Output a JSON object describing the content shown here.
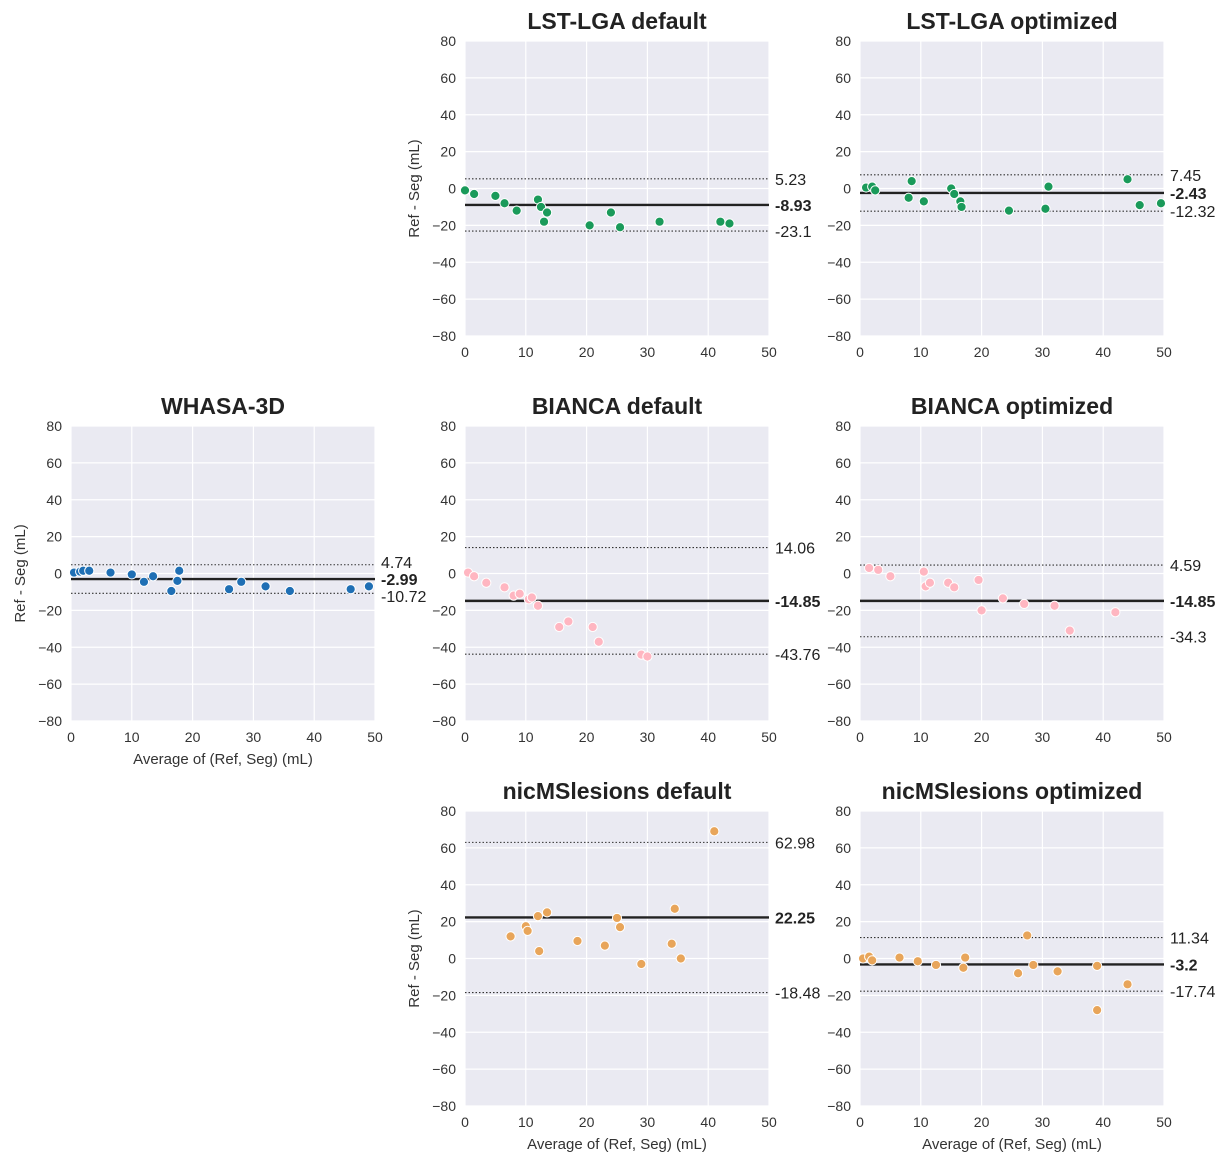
{
  "chart_data": [
    {
      "type": "scatter",
      "id": "lst-lga-default",
      "title": "LST-LGA default",
      "xlabel": "",
      "ylabel": "Ref - Seg (mL)",
      "xlim": [
        0,
        50
      ],
      "ylim": [
        -80,
        80
      ],
      "xticks": [
        "0",
        "10",
        "20",
        "30",
        "40",
        "50"
      ],
      "yticks": [
        "80",
        "60",
        "40",
        "20",
        "0",
        "−20",
        "−40",
        "−60",
        "−80"
      ],
      "grid": true,
      "color": "#1a9a5a",
      "mean": -8.93,
      "upper": 5.23,
      "lower": -23.1,
      "mean_label": "-8.93",
      "upper_label": "5.23",
      "lower_label": "-23.1",
      "points": [
        [
          0,
          -1
        ],
        [
          1.5,
          -3
        ],
        [
          5,
          -4
        ],
        [
          6.5,
          -8
        ],
        [
          8.5,
          -12
        ],
        [
          12,
          -6
        ],
        [
          12.5,
          -10
        ],
        [
          13,
          -18
        ],
        [
          13.5,
          -13
        ],
        [
          20.5,
          -20
        ],
        [
          24,
          -13
        ],
        [
          25.5,
          -21
        ],
        [
          32,
          -18
        ],
        [
          42,
          -18
        ],
        [
          43.5,
          -19
        ]
      ]
    },
    {
      "type": "scatter",
      "id": "lst-lga-optimized",
      "title": "LST-LGA optimized",
      "xlabel": "",
      "ylabel": "",
      "xlim": [
        0,
        50
      ],
      "ylim": [
        -80,
        80
      ],
      "xticks": [
        "0",
        "10",
        "20",
        "30",
        "40",
        "50"
      ],
      "yticks": [
        "80",
        "60",
        "40",
        "20",
        "0",
        "−20",
        "−40",
        "−60",
        "−80"
      ],
      "grid": true,
      "color": "#1a9a5a",
      "mean": -2.43,
      "upper": 7.45,
      "lower": -12.32,
      "mean_label": "-2.43",
      "upper_label": "7.45",
      "lower_label": "-12.32",
      "points": [
        [
          1,
          0.5
        ],
        [
          2,
          1
        ],
        [
          2.5,
          -1
        ],
        [
          8,
          -5
        ],
        [
          8.5,
          4
        ],
        [
          10.5,
          -7
        ],
        [
          15,
          0
        ],
        [
          15.5,
          -3
        ],
        [
          16.5,
          -7
        ],
        [
          16.7,
          -10
        ],
        [
          24.5,
          -12
        ],
        [
          30.5,
          -11
        ],
        [
          31,
          1
        ],
        [
          44,
          5
        ],
        [
          46,
          -9
        ],
        [
          49.5,
          -8
        ]
      ]
    },
    {
      "type": "scatter",
      "id": "whasa-3d",
      "title": "WHASA-3D",
      "xlabel": "Average of (Ref, Seg) (mL)",
      "ylabel": "Ref - Seg (mL)",
      "xlim": [
        0,
        50
      ],
      "ylim": [
        -80,
        80
      ],
      "xticks": [
        "0",
        "10",
        "20",
        "30",
        "40",
        "50"
      ],
      "yticks": [
        "80",
        "60",
        "40",
        "20",
        "0",
        "−20",
        "−40",
        "−60",
        "−80"
      ],
      "grid": true,
      "color": "#1f6fb4",
      "mean": -2.99,
      "upper": 4.74,
      "lower": -10.72,
      "mean_label": "-2.99",
      "upper_label": "4.74",
      "lower_label": "-10.72",
      "points": [
        [
          0.5,
          0.5
        ],
        [
          1.5,
          1
        ],
        [
          2,
          1.5
        ],
        [
          3,
          1.5
        ],
        [
          6.5,
          0.5
        ],
        [
          10,
          -0.5
        ],
        [
          12,
          -4.5
        ],
        [
          13.5,
          -1.5
        ],
        [
          16.5,
          -9.5
        ],
        [
          17.5,
          -4
        ],
        [
          17.8,
          1.5
        ],
        [
          26,
          -8.5
        ],
        [
          28,
          -4.5
        ],
        [
          32,
          -7
        ],
        [
          36,
          -9.5
        ],
        [
          46,
          -8.5
        ],
        [
          49,
          -7
        ]
      ]
    },
    {
      "type": "scatter",
      "id": "bianca-default",
      "title": "BIANCA default",
      "xlabel": "",
      "ylabel": "",
      "xlim": [
        0,
        50
      ],
      "ylim": [
        -80,
        80
      ],
      "xticks": [
        "0",
        "10",
        "20",
        "30",
        "40",
        "50"
      ],
      "yticks": [
        "80",
        "60",
        "40",
        "20",
        "0",
        "−20",
        "−40",
        "−60",
        "−80"
      ],
      "grid": true,
      "color": "#ffb6c1",
      "mean": -14.85,
      "upper": 14.06,
      "lower": -43.76,
      "mean_label": "-14.85",
      "upper_label": "14.06",
      "lower_label": "-43.76",
      "points": [
        [
          0.5,
          0.5
        ],
        [
          1.5,
          -1.5
        ],
        [
          3.5,
          -5
        ],
        [
          6.5,
          -7.5
        ],
        [
          8,
          -12
        ],
        [
          9,
          -11
        ],
        [
          10.5,
          -14
        ],
        [
          11,
          -13
        ],
        [
          12,
          -17.5
        ],
        [
          15.5,
          -29
        ],
        [
          17,
          -26
        ],
        [
          21,
          -29
        ],
        [
          22,
          -37
        ],
        [
          29,
          -44
        ],
        [
          30,
          -45
        ]
      ]
    },
    {
      "type": "scatter",
      "id": "bianca-optimized",
      "title": "BIANCA optimized",
      "xlabel": "",
      "ylabel": "",
      "xlim": [
        0,
        50
      ],
      "ylim": [
        -80,
        80
      ],
      "xticks": [
        "0",
        "10",
        "20",
        "30",
        "40",
        "50"
      ],
      "yticks": [
        "80",
        "60",
        "40",
        "20",
        "0",
        "−20",
        "−40",
        "−60",
        "−80"
      ],
      "grid": true,
      "color": "#ffb6c1",
      "mean": -14.85,
      "upper": 4.59,
      "lower": -34.3,
      "mean_label": "-14.85",
      "upper_label": "4.59",
      "lower_label": "-34.3",
      "points": [
        [
          1.5,
          3
        ],
        [
          3,
          2
        ],
        [
          5,
          -1.5
        ],
        [
          10.5,
          1
        ],
        [
          10.8,
          -7
        ],
        [
          11.5,
          -5
        ],
        [
          14.5,
          -5
        ],
        [
          15.5,
          -7.5
        ],
        [
          19.5,
          -3.5
        ],
        [
          20,
          -20
        ],
        [
          23.5,
          -13.5
        ],
        [
          27,
          -16.5
        ],
        [
          32,
          -17.5
        ],
        [
          34.5,
          -31
        ],
        [
          42,
          -21
        ]
      ]
    },
    {
      "type": "scatter",
      "id": "nicmslesions-default",
      "title": "nicMSlesions default",
      "xlabel": "Average of (Ref, Seg) (mL)",
      "ylabel": "Ref - Seg (mL)",
      "xlim": [
        0,
        50
      ],
      "ylim": [
        -80,
        80
      ],
      "xticks": [
        "0",
        "10",
        "20",
        "30",
        "40",
        "50"
      ],
      "yticks": [
        "80",
        "60",
        "40",
        "20",
        "0",
        "−20",
        "−40",
        "−60",
        "−80"
      ],
      "grid": true,
      "color": "#e8a55a",
      "mean": 22.25,
      "upper": 62.98,
      "lower": -18.48,
      "mean_label": "22.25",
      "upper_label": "62.98",
      "lower_label": "-18.48",
      "points": [
        [
          7.5,
          12
        ],
        [
          10,
          17.5
        ],
        [
          10.3,
          15
        ],
        [
          12,
          23
        ],
        [
          12.2,
          4
        ],
        [
          13.5,
          25
        ],
        [
          18.5,
          9.5
        ],
        [
          23,
          7
        ],
        [
          25,
          22
        ],
        [
          25.5,
          17
        ],
        [
          29,
          -3
        ],
        [
          34,
          8
        ],
        [
          34.5,
          27
        ],
        [
          35.5,
          0
        ],
        [
          41,
          69
        ]
      ]
    },
    {
      "type": "scatter",
      "id": "nicmslesions-optimized",
      "title": "nicMSlesions optimized",
      "xlabel": "Average of (Ref, Seg) (mL)",
      "ylabel": "",
      "xlim": [
        0,
        50
      ],
      "ylim": [
        -80,
        80
      ],
      "xticks": [
        "0",
        "10",
        "20",
        "30",
        "40",
        "50"
      ],
      "yticks": [
        "80",
        "60",
        "40",
        "20",
        "0",
        "−20",
        "−40",
        "−60",
        "−80"
      ],
      "grid": true,
      "color": "#e8a55a",
      "mean": -3.2,
      "upper": 11.34,
      "lower": -17.74,
      "mean_label": "-3.2",
      "upper_label": "11.34",
      "lower_label": "-17.74",
      "points": [
        [
          0.5,
          0
        ],
        [
          1.5,
          1
        ],
        [
          2,
          -1
        ],
        [
          6.5,
          0.5
        ],
        [
          9.5,
          -1.5
        ],
        [
          12.5,
          -3.5
        ],
        [
          17,
          -5
        ],
        [
          17.3,
          0.5
        ],
        [
          26,
          -8
        ],
        [
          27.5,
          12.5
        ],
        [
          28.5,
          -3.5
        ],
        [
          32.5,
          -7
        ],
        [
          39,
          -4
        ],
        [
          39,
          -28
        ],
        [
          44,
          -14
        ]
      ]
    }
  ]
}
